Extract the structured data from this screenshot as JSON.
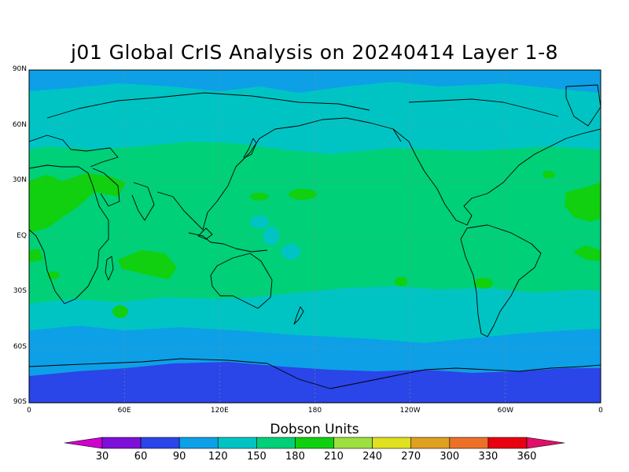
{
  "title": "j01 Global CrIS Analysis on 20240414 Layer 1-8",
  "y_ticks": [
    "90N",
    "60N",
    "30N",
    "EQ",
    "30S",
    "60S",
    "90S"
  ],
  "x_ticks": [
    "0",
    "60E",
    "120E",
    "180",
    "120W",
    "60W",
    "0"
  ],
  "colorbar": {
    "title": "Dobson Units",
    "labels": [
      "30",
      "60",
      "90",
      "120",
      "150",
      "180",
      "210",
      "240",
      "270",
      "300",
      "330",
      "360"
    ],
    "colors": [
      "#d000d0",
      "#7d10d8",
      "#2a45e8",
      "#0da0e6",
      "#00c4c4",
      "#00d078",
      "#10d010",
      "#9ee040",
      "#e0e020",
      "#e0a020",
      "#ec7028",
      "#e80010",
      "#e0106a"
    ]
  },
  "field_colors": {
    "band_60_90": "#2a45e8",
    "band_90_120": "#0da0e6",
    "band_120_150": "#00c4c4",
    "band_150_180": "#00d078",
    "band_180_210": "#10d010"
  }
}
